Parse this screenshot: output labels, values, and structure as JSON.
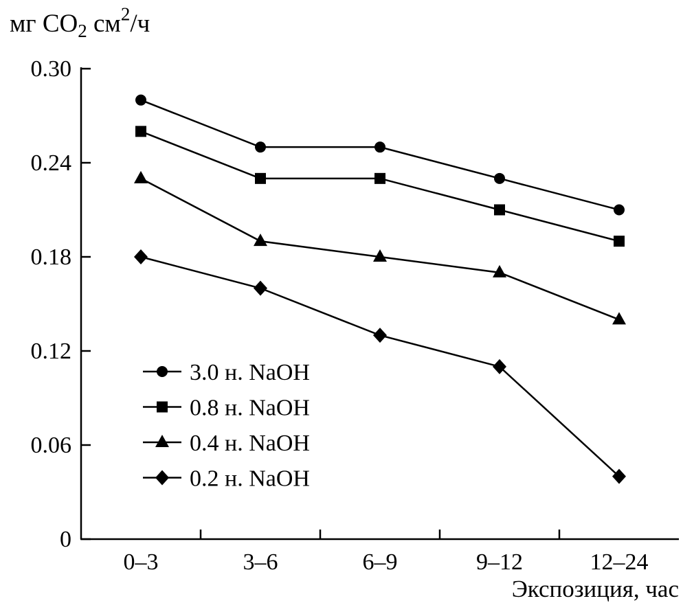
{
  "chart_data": {
    "type": "line",
    "title": "",
    "ylabel": "мг CO2 см2/ч",
    "ylabel_parts": [
      {
        "text": "мг CO",
        "style": "normal"
      },
      {
        "text": "2",
        "style": "sub"
      },
      {
        "text": " см",
        "style": "normal"
      },
      {
        "text": "2",
        "style": "sup"
      },
      {
        "text": "/ч",
        "style": "normal"
      }
    ],
    "xlabel": "Экспозиция, час",
    "categories": [
      "0–3",
      "3–6",
      "6–9",
      "9–12",
      "12–24"
    ],
    "ylim": [
      0,
      0.3
    ],
    "yticks": [
      0,
      0.06,
      0.12,
      0.18,
      0.24,
      0.3
    ],
    "ytick_labels": [
      "0",
      "0.06",
      "0.12",
      "0.18",
      "0.24",
      "0.30"
    ],
    "grid": false,
    "legend_position": "inside-lower-left",
    "line_color": "#000000",
    "background": "#ffffff",
    "series": [
      {
        "name": "3.0 н. NaOH",
        "marker": "circle",
        "values": [
          0.28,
          0.25,
          0.25,
          0.23,
          0.21
        ]
      },
      {
        "name": "0.8 н. NaOH",
        "marker": "square",
        "values": [
          0.26,
          0.23,
          0.23,
          0.21,
          0.19
        ]
      },
      {
        "name": "0.4 н. NaOH",
        "marker": "triangle",
        "values": [
          0.23,
          0.19,
          0.18,
          0.17,
          0.14
        ]
      },
      {
        "name": "0.2 н. NaOH",
        "marker": "diamond",
        "values": [
          0.18,
          0.16,
          0.13,
          0.11,
          0.04
        ]
      }
    ]
  }
}
